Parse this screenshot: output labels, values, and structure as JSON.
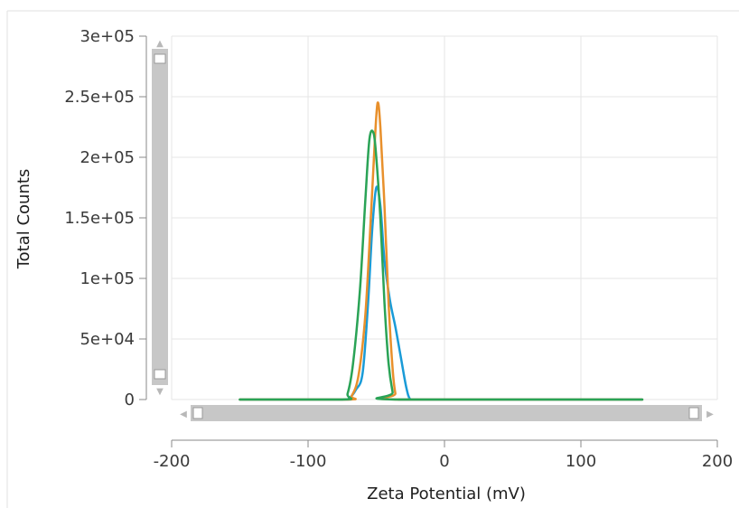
{
  "chart_data": {
    "type": "line",
    "xlabel": "Zeta Potential (mV)",
    "ylabel": "Total Counts",
    "xlim": [
      -200,
      200
    ],
    "ylim": [
      0,
      300000
    ],
    "x_ticks": [
      -200,
      -100,
      0,
      100,
      200
    ],
    "x_tick_labels": [
      "-200",
      "-100",
      "0",
      "100",
      "200"
    ],
    "y_ticks": [
      0,
      50000,
      100000,
      150000,
      200000,
      250000,
      300000
    ],
    "y_tick_labels": [
      "0",
      "5e+04",
      "1e+05",
      "1.5e+05",
      "2e+05",
      "2.5e+05",
      "3e+05"
    ],
    "grid": true,
    "legend": "none",
    "series": [
      {
        "color": "#1a9bd7",
        "x": [
          -150,
          -75,
          -70,
          -65,
          -60,
          -56,
          -53,
          -50,
          -47,
          -44,
          -40,
          -36,
          -32,
          -28,
          -25,
          -20,
          145
        ],
        "y": [
          0,
          0,
          1000,
          8000,
          22000,
          80000,
          140000,
          175000,
          160000,
          115000,
          82000,
          60000,
          35000,
          10000,
          0,
          0,
          0
        ]
      },
      {
        "color": "#e8902c",
        "x": [
          -150,
          -72,
          -68,
          -63,
          -58,
          -54,
          -51,
          -49,
          -47,
          -44,
          -41,
          -38,
          -36,
          -34,
          145
        ],
        "y": [
          0,
          0,
          3000,
          20000,
          70000,
          150000,
          215000,
          245000,
          225000,
          160000,
          80000,
          25000,
          5000,
          0,
          0
        ]
      },
      {
        "color": "#2aa356",
        "x": [
          -150,
          -75,
          -71,
          -67,
          -62,
          -58,
          -55,
          -52,
          -50,
          -47,
          -44,
          -41,
          -38,
          -36,
          145
        ],
        "y": [
          0,
          0,
          5000,
          30000,
          90000,
          165000,
          215000,
          220000,
          200000,
          150000,
          80000,
          30000,
          6000,
          0,
          0
        ]
      }
    ]
  },
  "scrollbars": {
    "vertical_arrow_up": "▲",
    "vertical_arrow_down": "▼",
    "horizontal_arrow_left": "◀",
    "horizontal_arrow_right": "▶"
  }
}
